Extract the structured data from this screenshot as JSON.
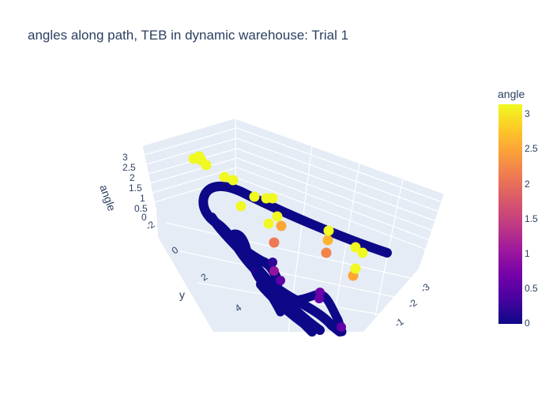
{
  "chart_data": {
    "type": "scatter3d",
    "title": "angles along path, TEB in dynamic warehouse: Trial 1",
    "axes": {
      "x": {
        "title": "",
        "ticks": [
          "-3",
          "-2",
          "-1"
        ]
      },
      "y": {
        "title": "y",
        "ticks": [
          "-2",
          "0",
          "2",
          "4"
        ]
      },
      "z": {
        "title": "angle",
        "ticks": [
          "0",
          "0.5",
          "1",
          "1.5",
          "2",
          "2.5",
          "3"
        ]
      }
    },
    "colorbar": {
      "title": "angle",
      "ticks": [
        "0",
        "0.5",
        "1",
        "1.5",
        "2",
        "2.5",
        "3"
      ],
      "range": [
        0,
        3.14
      ],
      "colorscale": [
        "#0d0887",
        "#46039f",
        "#7201a8",
        "#9c179e",
        "#bd3786",
        "#d8576b",
        "#ed7953",
        "#fb9f3a",
        "#fdca26",
        "#f0f921"
      ]
    },
    "marker_angles_high": [
      3.14,
      3.14,
      3.14,
      3.14,
      3.14,
      3.14,
      3.12,
      3.14,
      3.14,
      3.14,
      3.14,
      3.12,
      3.14,
      3.14,
      3.12,
      3.14,
      3.12,
      3.1,
      3.1
    ],
    "marker_angles_mid": [
      2.6,
      2.05,
      2.15,
      2.05,
      2.6,
      2.2
    ],
    "marker_angles_low": [
      0.05,
      0.9,
      0.5,
      0.7,
      0.7,
      0.55,
      0.65,
      0.4
    ]
  }
}
